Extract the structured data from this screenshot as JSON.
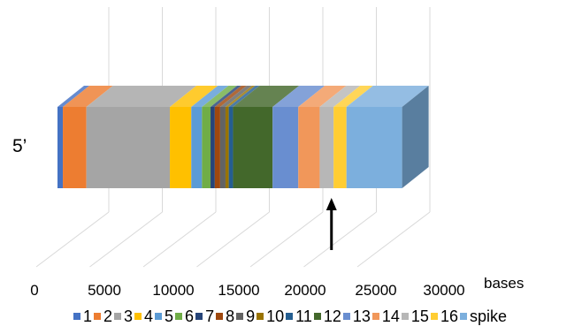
{
  "chart_data": {
    "type": "bar",
    "orientation": "horizontal-stacked-3d",
    "end_label": "5’",
    "x_unit": "bases",
    "x_ticks": [
      "0",
      "5000",
      "10000",
      "15000",
      "20000",
      "25000",
      "30000"
    ],
    "xlim": [
      0,
      30000
    ],
    "grid": true,
    "legend_position": "bottom",
    "segments": [
      {
        "name": "1",
        "start": 0,
        "end": 500,
        "color": "#4472C4"
      },
      {
        "name": "2",
        "start": 500,
        "end": 2700,
        "color": "#ED7D31"
      },
      {
        "name": "3",
        "start": 2700,
        "end": 10500,
        "color": "#A5A5A5"
      },
      {
        "name": "4",
        "start": 10500,
        "end": 12500,
        "color": "#FFC000"
      },
      {
        "name": "5",
        "start": 12500,
        "end": 13500,
        "color": "#5B9BD5"
      },
      {
        "name": "6",
        "start": 13500,
        "end": 14300,
        "color": "#70AD47"
      },
      {
        "name": "7",
        "start": 14300,
        "end": 14700,
        "color": "#264478"
      },
      {
        "name": "8",
        "start": 14700,
        "end": 15200,
        "color": "#9E480E"
      },
      {
        "name": "9",
        "start": 15200,
        "end": 15700,
        "color": "#636363"
      },
      {
        "name": "10",
        "start": 15700,
        "end": 16000,
        "color": "#997300"
      },
      {
        "name": "11",
        "start": 16000,
        "end": 16400,
        "color": "#255E91"
      },
      {
        "name": "12",
        "start": 16400,
        "end": 20100,
        "color": "#43682B"
      },
      {
        "name": "13",
        "start": 20100,
        "end": 22500,
        "color": "#698ED0"
      },
      {
        "name": "14",
        "start": 22500,
        "end": 24500,
        "color": "#F1975A"
      },
      {
        "name": "15",
        "start": 24500,
        "end": 25800,
        "color": "#B7B7B7"
      },
      {
        "name": "16",
        "start": 25800,
        "end": 27000,
        "color": "#FFCD33"
      },
      {
        "name": "spike",
        "start": 27000,
        "end": 32200,
        "color": "#7CAFDD"
      }
    ],
    "arrow_at": 25600
  }
}
